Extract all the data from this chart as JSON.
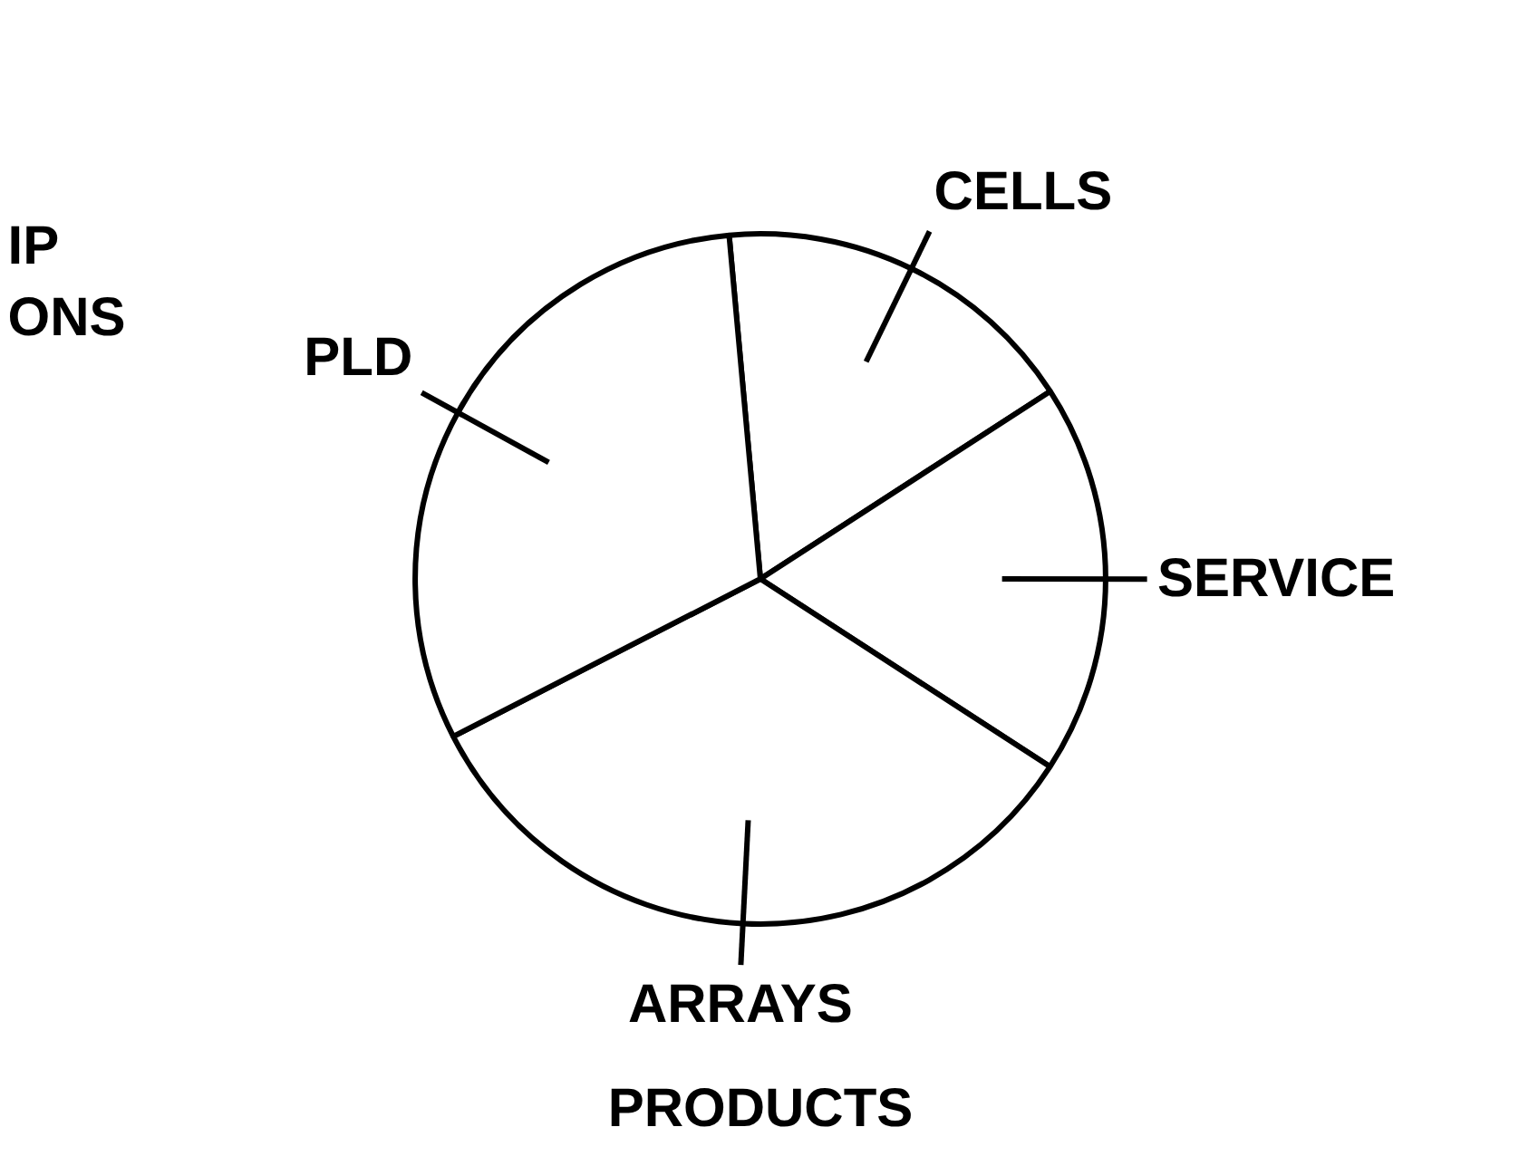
{
  "chart_data": {
    "type": "pie",
    "title": "PRODUCTS",
    "categories": [
      "CELLS",
      "SERVICE",
      "ARRAYS",
      "PLD"
    ],
    "values": [
      17.3,
      18.3,
      33.3,
      31.1
    ],
    "colors": [
      "#ffffff",
      "#ffffff",
      "#ffffff",
      "#ffffff"
    ],
    "annotations": [
      "IP\nONS"
    ]
  }
}
